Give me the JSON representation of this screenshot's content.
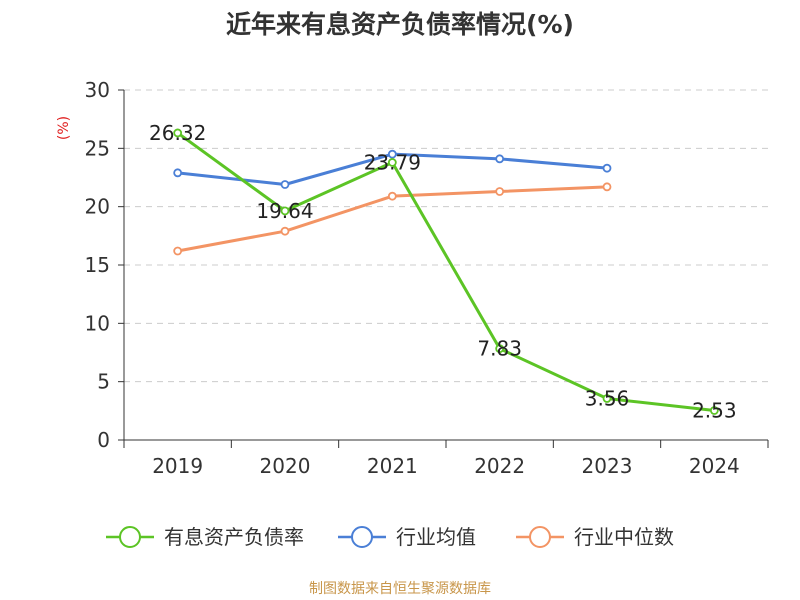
{
  "chart_data": {
    "type": "line",
    "title": "近年来有息资产负债率情况(%)",
    "ylabel": "(%)",
    "xlabel": "",
    "categories": [
      "2019",
      "2020",
      "2021",
      "2022",
      "2023",
      "2024"
    ],
    "ylim": [
      0,
      30
    ],
    "yticks": [
      0,
      5,
      10,
      15,
      20,
      25,
      30
    ],
    "grid": true,
    "legend_position": "bottom",
    "series": [
      {
        "name": "有息资产负债率",
        "color": "#5cc425",
        "values": [
          26.32,
          19.64,
          23.79,
          7.83,
          3.56,
          2.53
        ],
        "labels": [
          "26.32",
          "19.64",
          "23.79",
          "7.83",
          "3.56",
          "2.53"
        ]
      },
      {
        "name": "行业均值",
        "color": "#4a7fd6",
        "values": [
          22.9,
          21.9,
          24.5,
          24.1,
          23.3,
          null
        ]
      },
      {
        "name": "行业中位数",
        "color": "#f39464",
        "values": [
          16.2,
          17.9,
          20.9,
          21.3,
          21.7,
          null
        ]
      }
    ]
  },
  "source": "制图数据来自恒生聚源数据库"
}
